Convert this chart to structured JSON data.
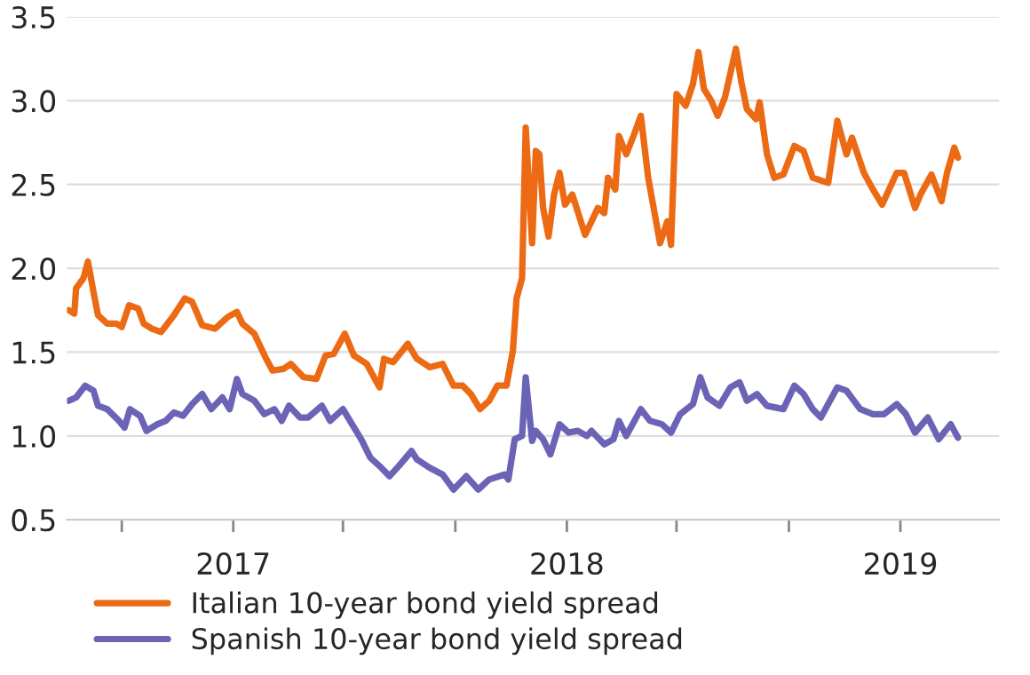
{
  "chart_data": {
    "type": "line",
    "xlim": [
      "2016-07-03",
      "2019-04-19"
    ],
    "xticks": [
      {
        "value": "2016-09-01",
        "label": null
      },
      {
        "value": "2017-01-01",
        "label": "2017"
      },
      {
        "value": "2017-05-01",
        "label": null
      },
      {
        "value": "2017-09-01",
        "label": null
      },
      {
        "value": "2018-01-01",
        "label": "2018"
      },
      {
        "value": "2018-05-01",
        "label": null
      },
      {
        "value": "2018-09-01",
        "label": null
      },
      {
        "value": "2019-01-01",
        "label": "2019"
      }
    ],
    "ylim": [
      0.5,
      3.5
    ],
    "yticks": [
      0.5,
      {
        "value": 1,
        "label": "1.0"
      },
      1.5,
      {
        "value": 2,
        "label": "2.0"
      },
      2.5,
      {
        "value": 3,
        "label": "3.0"
      },
      3.5
    ],
    "grid": "y",
    "legend": "bottom",
    "marker": "none",
    "line_style": "solid",
    "series": [
      {
        "name": "Italian 10-year bond yield spread",
        "color": "#ec6a13",
        "x": [
          "2016-07-05",
          "2016-07-11",
          "2016-07-13",
          "2016-07-21",
          "2016-07-26",
          "2016-08-02",
          "2016-08-06",
          "2016-08-16",
          "2016-08-26",
          "2016-09-01",
          "2016-09-09",
          "2016-09-19",
          "2016-09-25",
          "2016-10-04",
          "2016-10-14",
          "2016-10-28",
          "2016-11-09",
          "2016-11-17",
          "2016-11-28",
          "2016-12-12",
          "2016-12-26",
          "2017-01-05",
          "2017-01-11",
          "2017-01-24",
          "2017-02-06",
          "2017-02-13",
          "2017-02-25",
          "2017-03-05",
          "2017-03-19",
          "2017-04-02",
          "2017-04-12",
          "2017-04-21",
          "2017-05-03",
          "2017-05-13",
          "2017-05-27",
          "2017-06-10",
          "2017-06-15",
          "2017-06-25",
          "2017-07-11",
          "2017-07-21",
          "2017-08-04",
          "2017-08-18",
          "2017-08-30",
          "2017-09-09",
          "2017-09-18",
          "2017-09-28",
          "2017-10-08",
          "2017-10-17",
          "2017-10-27",
          "2017-11-03",
          "2017-11-07",
          "2017-11-13",
          "2017-11-17",
          "2017-11-24",
          "2017-11-28",
          "2017-12-02",
          "2017-12-06",
          "2017-12-12",
          "2017-12-18",
          "2017-12-24",
          "2017-12-30",
          "2018-01-07",
          "2018-01-21",
          "2018-02-04",
          "2018-02-11",
          "2018-02-15",
          "2018-02-23",
          "2018-02-27",
          "2018-03-07",
          "2018-03-15",
          "2018-03-23",
          "2018-03-31",
          "2018-04-06",
          "2018-04-13",
          "2018-04-21",
          "2018-04-25",
          "2018-05-01",
          "2018-05-11",
          "2018-05-19",
          "2018-05-25",
          "2018-05-31",
          "2018-06-08",
          "2018-06-15",
          "2018-06-23",
          "2018-07-05",
          "2018-07-11",
          "2018-07-17",
          "2018-07-27",
          "2018-07-31",
          "2018-08-08",
          "2018-08-16",
          "2018-08-26",
          "2018-09-07",
          "2018-09-17",
          "2018-09-27",
          "2018-10-14",
          "2018-10-24",
          "2018-11-03",
          "2018-11-09",
          "2018-11-22",
          "2018-12-02",
          "2018-12-12",
          "2018-12-28",
          "2019-01-05",
          "2019-01-17",
          "2019-01-23",
          "2019-02-04",
          "2019-02-15",
          "2019-02-21",
          "2019-03-01",
          "2019-03-05"
        ],
        "values": [
          1.75,
          1.73,
          1.88,
          1.94,
          2.04,
          1.83,
          1.72,
          1.67,
          1.67,
          1.65,
          1.78,
          1.76,
          1.67,
          1.64,
          1.62,
          1.72,
          1.82,
          1.8,
          1.66,
          1.64,
          1.71,
          1.74,
          1.67,
          1.61,
          1.46,
          1.39,
          1.4,
          1.43,
          1.35,
          1.34,
          1.48,
          1.49,
          1.61,
          1.48,
          1.43,
          1.29,
          1.46,
          1.44,
          1.55,
          1.46,
          1.41,
          1.43,
          1.3,
          1.3,
          1.25,
          1.16,
          1.21,
          1.3,
          1.3,
          1.51,
          1.82,
          1.94,
          2.84,
          2.15,
          2.7,
          2.68,
          2.36,
          2.19,
          2.44,
          2.57,
          2.38,
          2.44,
          2.2,
          2.36,
          2.33,
          2.54,
          2.47,
          2.79,
          2.68,
          2.79,
          2.91,
          2.54,
          2.36,
          2.15,
          2.28,
          2.14,
          3.04,
          2.97,
          3.1,
          3.29,
          3.07,
          3.0,
          2.91,
          3.02,
          3.31,
          3.11,
          2.95,
          2.89,
          2.99,
          2.68,
          2.54,
          2.56,
          2.73,
          2.7,
          2.54,
          2.51,
          2.88,
          2.68,
          2.78,
          2.57,
          2.47,
          2.38,
          2.57,
          2.57,
          2.36,
          2.44,
          2.56,
          2.4,
          2.57,
          2.72,
          2.66
        ]
      },
      {
        "name": "Spanish 10-year bond yield spread",
        "color": "#6b63b5",
        "x": [
          "2016-07-05",
          "2016-07-13",
          "2016-07-23",
          "2016-08-01",
          "2016-08-06",
          "2016-08-16",
          "2016-08-29",
          "2016-09-04",
          "2016-09-10",
          "2016-09-21",
          "2016-09-28",
          "2016-10-10",
          "2016-10-19",
          "2016-10-28",
          "2016-11-07",
          "2016-11-17",
          "2016-11-28",
          "2016-12-08",
          "2016-12-20",
          "2016-12-28",
          "2017-01-05",
          "2017-01-11",
          "2017-01-24",
          "2017-02-04",
          "2017-02-15",
          "2017-02-23",
          "2017-03-03",
          "2017-03-15",
          "2017-03-24",
          "2017-04-08",
          "2017-04-17",
          "2017-05-01",
          "2017-05-11",
          "2017-05-21",
          "2017-05-31",
          "2017-06-12",
          "2017-06-21",
          "2017-07-01",
          "2017-07-15",
          "2017-07-21",
          "2017-08-04",
          "2017-08-18",
          "2017-08-30",
          "2017-09-13",
          "2017-09-26",
          "2017-10-08",
          "2017-10-25",
          "2017-10-29",
          "2017-11-05",
          "2017-11-13",
          "2017-11-17",
          "2017-11-24",
          "2017-11-28",
          "2017-12-06",
          "2017-12-14",
          "2017-12-24",
          "2018-01-03",
          "2018-01-13",
          "2018-01-23",
          "2018-01-28",
          "2018-02-11",
          "2018-02-21",
          "2018-02-27",
          "2018-03-07",
          "2018-03-23",
          "2018-04-02",
          "2018-04-15",
          "2018-04-25",
          "2018-05-05",
          "2018-05-19",
          "2018-05-27",
          "2018-06-04",
          "2018-06-17",
          "2018-06-29",
          "2018-07-09",
          "2018-07-17",
          "2018-07-28",
          "2018-08-08",
          "2018-08-26",
          "2018-09-07",
          "2018-09-17",
          "2018-09-27",
          "2018-10-06",
          "2018-10-24",
          "2018-11-03",
          "2018-11-18",
          "2018-12-02",
          "2018-12-14",
          "2018-12-28",
          "2019-01-07",
          "2019-01-17",
          "2019-01-31",
          "2019-02-12",
          "2019-02-25",
          "2019-03-05"
        ],
        "values": [
          1.21,
          1.23,
          1.3,
          1.27,
          1.18,
          1.16,
          1.09,
          1.05,
          1.16,
          1.12,
          1.03,
          1.07,
          1.09,
          1.14,
          1.12,
          1.19,
          1.25,
          1.16,
          1.23,
          1.16,
          1.34,
          1.25,
          1.21,
          1.13,
          1.16,
          1.09,
          1.18,
          1.11,
          1.11,
          1.18,
          1.09,
          1.16,
          1.07,
          0.98,
          0.87,
          0.81,
          0.76,
          0.82,
          0.91,
          0.86,
          0.81,
          0.77,
          0.68,
          0.76,
          0.68,
          0.74,
          0.77,
          0.74,
          0.98,
          1.0,
          1.35,
          0.97,
          1.03,
          0.98,
          0.89,
          1.07,
          1.02,
          1.03,
          1.0,
          1.03,
          0.95,
          0.98,
          1.09,
          1.0,
          1.16,
          1.09,
          1.07,
          1.02,
          1.13,
          1.19,
          1.35,
          1.23,
          1.18,
          1.29,
          1.32,
          1.21,
          1.25,
          1.18,
          1.16,
          1.3,
          1.25,
          1.16,
          1.11,
          1.29,
          1.27,
          1.16,
          1.13,
          1.13,
          1.19,
          1.13,
          1.02,
          1.11,
          0.98,
          1.07,
          0.99
        ]
      }
    ]
  }
}
